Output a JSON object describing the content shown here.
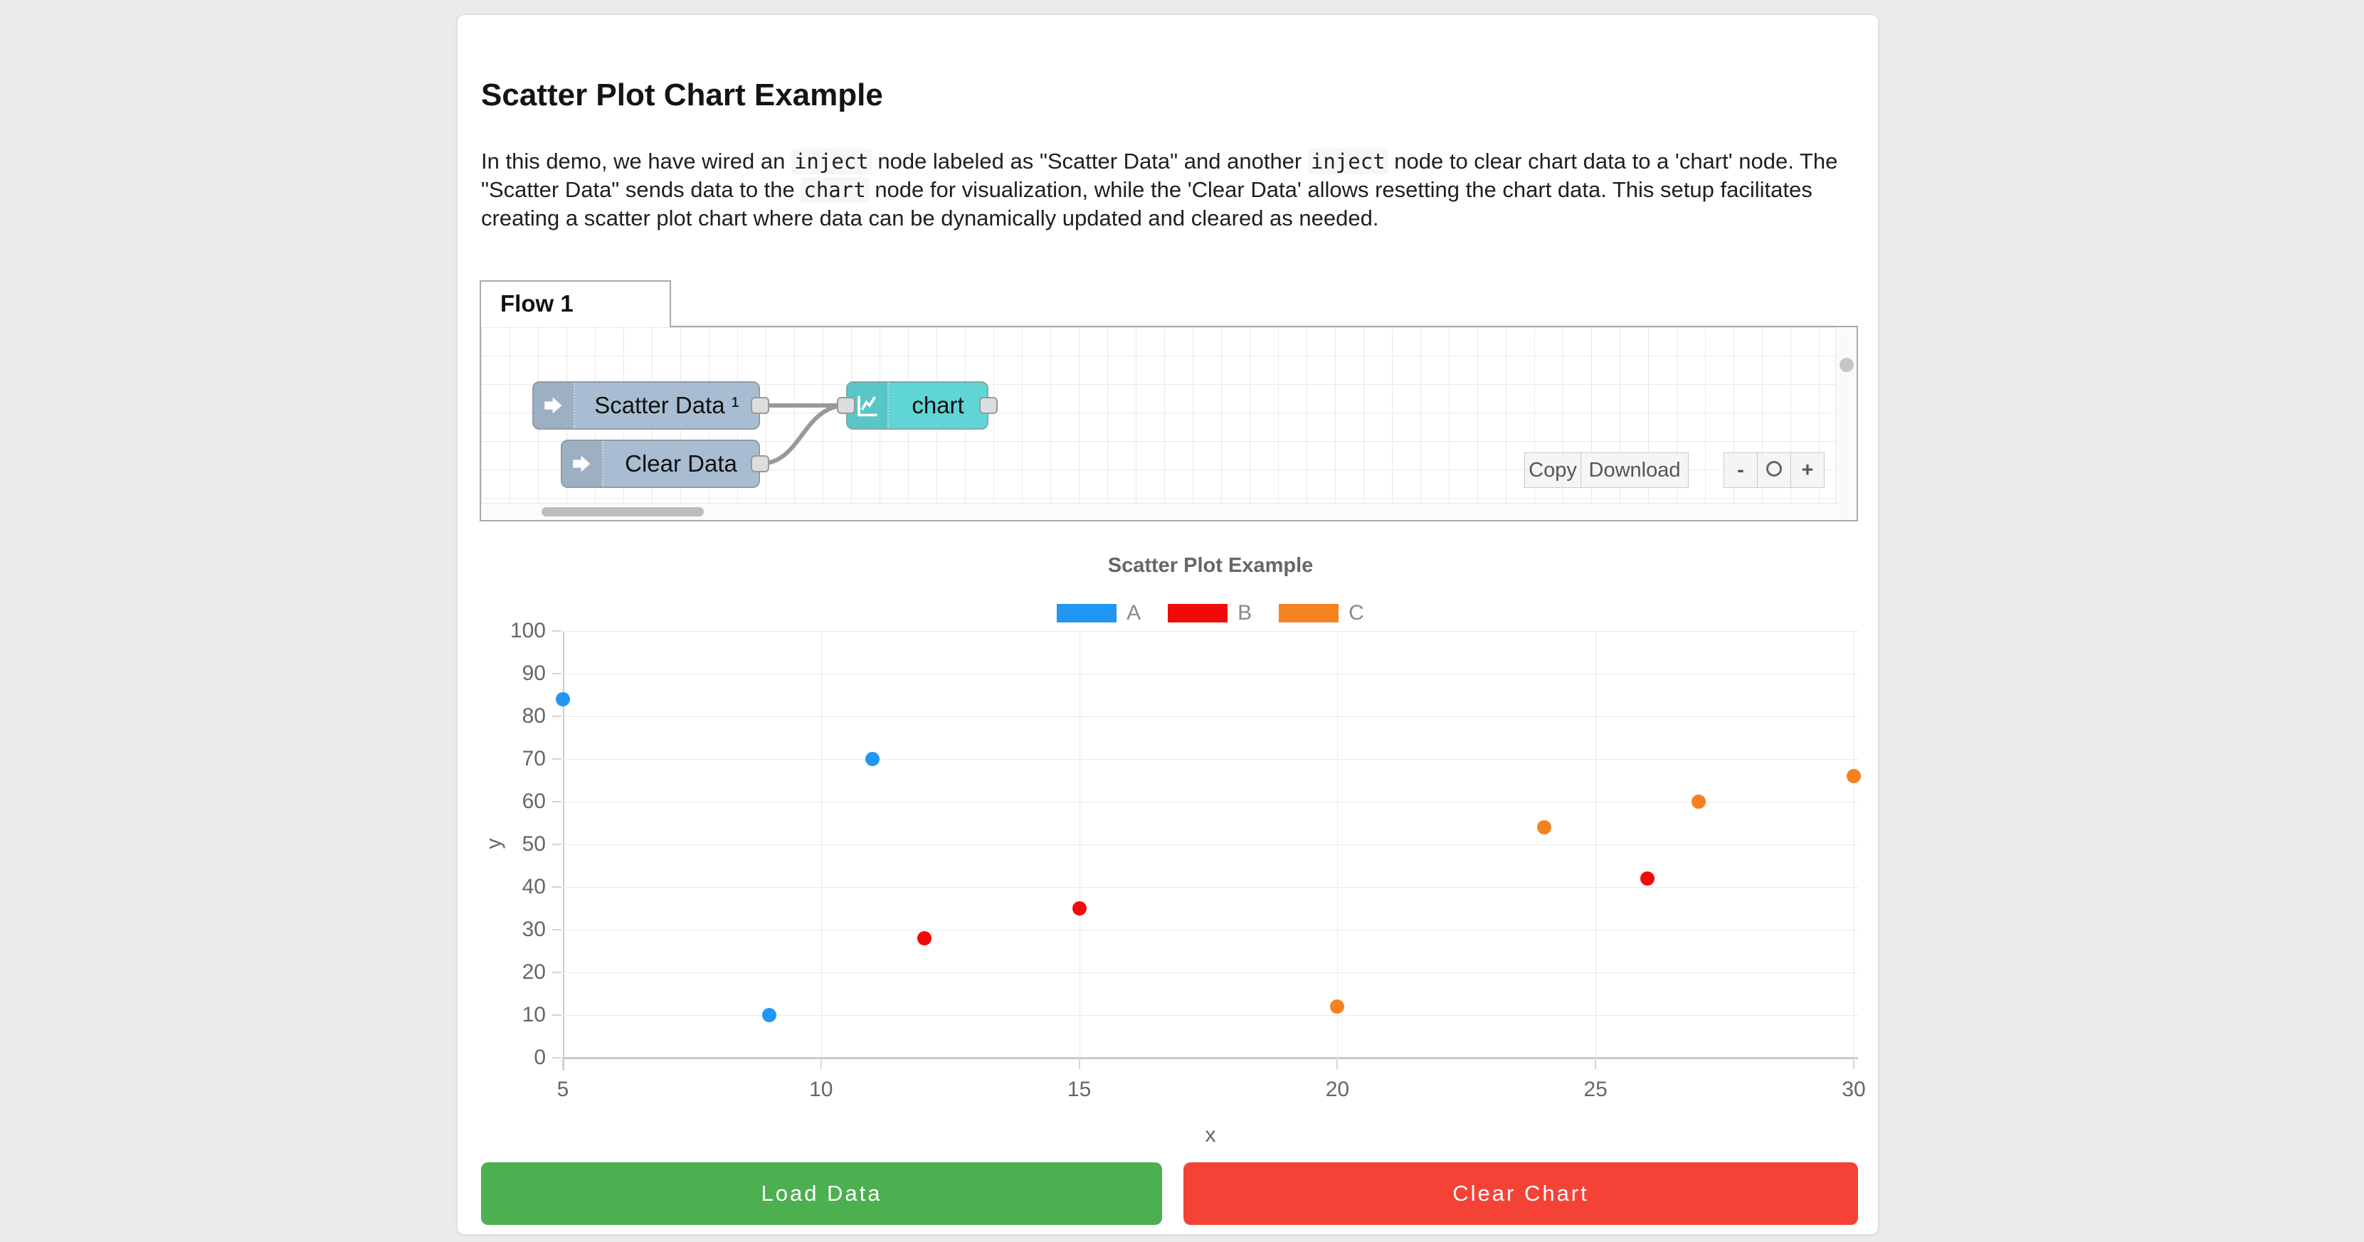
{
  "page": {
    "title": "Scatter Plot Chart Example"
  },
  "description": {
    "parts": [
      {
        "t": "text",
        "v": "In this demo, we have wired an "
      },
      {
        "t": "code",
        "v": "inject"
      },
      {
        "t": "text",
        "v": " node labeled as \"Scatter Data\" and another "
      },
      {
        "t": "code",
        "v": "inject"
      },
      {
        "t": "text",
        "v": " node to clear chart data to a 'chart' node. The \"Scatter Data\" sends data to the "
      },
      {
        "t": "code",
        "v": "chart"
      },
      {
        "t": "text",
        "v": " node for visualization, while the 'Clear Data' allows resetting the chart data. This setup facilitates creating a scatter plot chart where data can be dynamically updated and cleared as needed."
      }
    ]
  },
  "flow_editor": {
    "tab_label": "Flow 1",
    "nodes": [
      {
        "id": "scatter-data",
        "type": "inject",
        "label": "Scatter Data ¹"
      },
      {
        "id": "clear-data",
        "type": "inject",
        "label": "Clear Data"
      },
      {
        "id": "chart",
        "type": "chart",
        "label": "chart"
      }
    ],
    "toolbar": {
      "copy_label": "Copy",
      "download_label": "Download",
      "zoom_out_label": "-",
      "zoom_in_label": "+",
      "zoom_reset_icon": "circle"
    }
  },
  "chart_data": {
    "type": "scatter",
    "title": "Scatter Plot Example",
    "xlabel": "x",
    "ylabel": "y",
    "xlim": [
      5,
      30
    ],
    "ylim": [
      0,
      100
    ],
    "x_ticks": [
      5,
      10,
      15,
      20,
      25,
      30
    ],
    "y_ticks": [
      0,
      10,
      20,
      30,
      40,
      50,
      60,
      70,
      80,
      90,
      100
    ],
    "grid": true,
    "legend_position": "top",
    "series": [
      {
        "name": "A",
        "color": "#2196f3",
        "points": [
          [
            5,
            84
          ],
          [
            9,
            10
          ],
          [
            11,
            70
          ]
        ]
      },
      {
        "name": "B",
        "color": "#f20a0a",
        "points": [
          [
            12,
            28
          ],
          [
            15,
            35
          ],
          [
            26,
            42
          ]
        ]
      },
      {
        "name": "C",
        "color": "#f58220",
        "points": [
          [
            20,
            12
          ],
          [
            24,
            54
          ],
          [
            27,
            60
          ],
          [
            30,
            66
          ]
        ]
      }
    ]
  },
  "actions": {
    "load_label": "Load Data",
    "load_color": "#4caf50",
    "clear_label": "Clear Chart",
    "clear_color": "#f44336"
  }
}
